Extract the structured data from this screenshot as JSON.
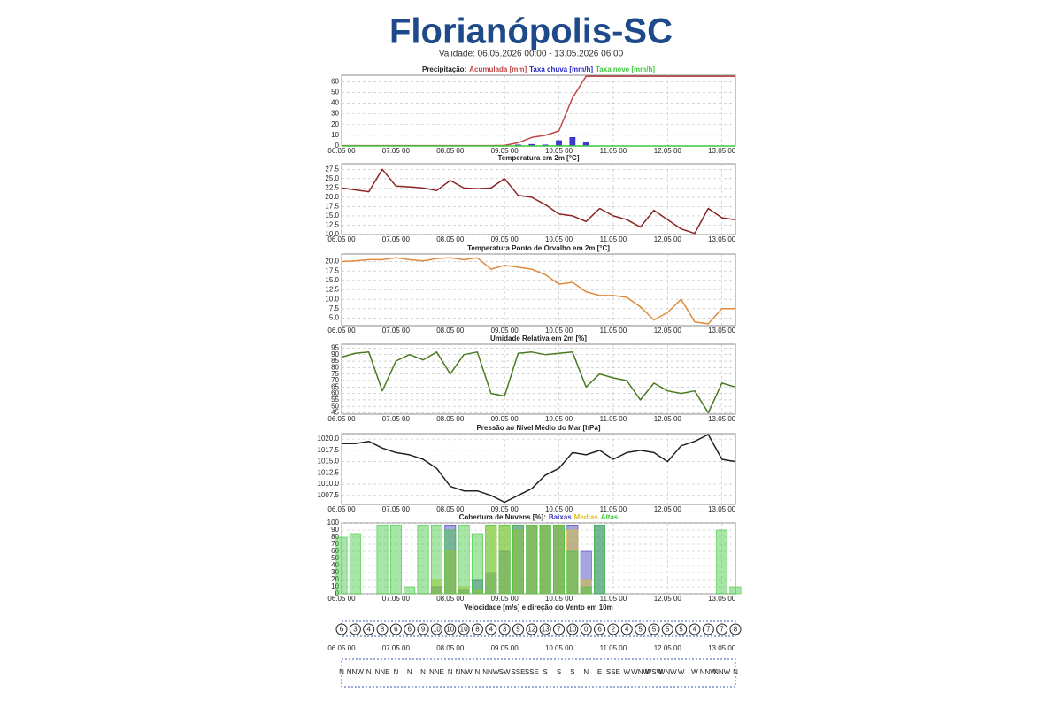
{
  "header": {
    "title": "Florianópolis-SC",
    "subtitle": "Validade: 06.05.2026 00:00 - 13.05.2026 06:00"
  },
  "chart_data": [
    {
      "type": "line",
      "title": "Precipitação:",
      "x": [
        "06.05 00",
        null,
        null,
        null,
        "07.05 00",
        null,
        null,
        null,
        "08.05 00",
        null,
        null,
        null,
        "09.05 00",
        null,
        null,
        null,
        "10.05 00",
        null,
        null,
        null,
        "11.05 00",
        null,
        null,
        null,
        "12.05 00",
        null,
        null,
        null,
        "13.05 00",
        null
      ],
      "ylim": [
        0,
        66
      ],
      "yticks": [
        0,
        10,
        20,
        30,
        40,
        50,
        60
      ],
      "grid": true,
      "series": [
        {
          "name": "Acumulada [mm]",
          "color": "#c04848",
          "values": [
            0.3,
            0.3,
            0.3,
            0.3,
            0.3,
            0.3,
            0.3,
            0.3,
            0.3,
            0.3,
            0.3,
            0.3,
            0.5,
            3,
            8,
            10,
            14,
            45,
            65,
            65,
            65,
            65,
            65,
            65,
            65,
            65,
            65,
            65,
            65,
            65
          ]
        },
        {
          "name": "Taxa chuva [mm/h]",
          "color": "#2828c8",
          "type": "bar",
          "values": [
            0,
            0,
            0,
            0,
            0,
            0,
            0,
            0,
            0,
            0,
            0,
            0,
            0,
            1,
            1.5,
            1,
            5,
            8,
            3,
            0,
            0,
            0,
            0,
            0,
            0,
            0,
            0,
            0,
            0,
            0
          ]
        },
        {
          "name": "Taxa neve [mm/h]",
          "color": "#3cc83c",
          "values": [
            0,
            0,
            0,
            0,
            0,
            0,
            0,
            0,
            0,
            0,
            0,
            0,
            0,
            0,
            0,
            0,
            0,
            0,
            0,
            0,
            0,
            0,
            0,
            0,
            0,
            0,
            0,
            0,
            0,
            0
          ]
        }
      ]
    },
    {
      "type": "line",
      "title": "Temperatura em 2m [°C]",
      "x": [
        "06.05 00",
        null,
        null,
        null,
        "07.05 00",
        null,
        null,
        null,
        "08.05 00",
        null,
        null,
        null,
        "09.05 00",
        null,
        null,
        null,
        "10.05 00",
        null,
        null,
        null,
        "11.05 00",
        null,
        null,
        null,
        "12.05 00",
        null,
        null,
        null,
        "13.05 00",
        null
      ],
      "ylim": [
        10,
        29
      ],
      "yticks": [
        {
          "value": 10,
          "label": "10.0"
        },
        12.5,
        {
          "value": 15,
          "label": "15.0"
        },
        17.5,
        {
          "value": 20,
          "label": "20.0"
        },
        22.5,
        {
          "value": 25,
          "label": "25.0"
        },
        27.5
      ],
      "grid": true,
      "series": [
        {
          "name": "Temperatura",
          "color": "#8b2323",
          "values": [
            22.5,
            22,
            21.5,
            27.5,
            23,
            22.8,
            22.5,
            21.8,
            24.5,
            22.5,
            22.3,
            22.5,
            25,
            20.5,
            20,
            18,
            15.5,
            15,
            13.5,
            17,
            15,
            14,
            12,
            16.5,
            14,
            11.5,
            10.3,
            17,
            14.5,
            14
          ]
        }
      ]
    },
    {
      "type": "line",
      "title": "Temperatura Ponto de Orvalho em 2m [°C]",
      "x": [
        "06.05 00",
        null,
        null,
        null,
        "07.05 00",
        null,
        null,
        null,
        "08.05 00",
        null,
        null,
        null,
        "09.05 00",
        null,
        null,
        null,
        "10.05 00",
        null,
        null,
        null,
        "11.05 00",
        null,
        null,
        null,
        "12.05 00",
        null,
        null,
        null,
        "13.05 00",
        null
      ],
      "ylim": [
        3,
        22
      ],
      "yticks": [
        {
          "value": 5,
          "label": "5.0"
        },
        7.5,
        {
          "value": 10,
          "label": "10.0"
        },
        12.5,
        {
          "value": 15,
          "label": "15.0"
        },
        17.5,
        {
          "value": 20,
          "label": "20.0"
        }
      ],
      "grid": true,
      "series": [
        {
          "name": "Ponto de Orvalho",
          "color": "#e08a3c",
          "values": [
            20,
            20.2,
            20.5,
            20.5,
            21,
            20.5,
            20.2,
            20.8,
            21,
            20.5,
            21,
            18,
            19,
            18.5,
            18,
            16.5,
            14,
            14.5,
            12,
            11,
            11,
            10.5,
            8,
            4.5,
            6.5,
            10,
            4,
            3.5,
            7.5,
            7.5
          ]
        }
      ]
    },
    {
      "type": "line",
      "title": "Umidade Relativa em 2m [%]",
      "x": [
        "06.05 00",
        null,
        null,
        null,
        "07.05 00",
        null,
        null,
        null,
        "08.05 00",
        null,
        null,
        null,
        "09.05 00",
        null,
        null,
        null,
        "10.05 00",
        null,
        null,
        null,
        "11.05 00",
        null,
        null,
        null,
        "12.05 00",
        null,
        null,
        null,
        "13.05 00",
        null
      ],
      "ylim": [
        44,
        98
      ],
      "yticks": [
        45,
        50,
        55,
        60,
        65,
        70,
        75,
        80,
        85,
        90,
        95
      ],
      "grid": true,
      "series": [
        {
          "name": "Umidade",
          "color": "#4a7a20",
          "values": [
            88,
            91,
            92,
            62,
            85,
            90,
            86,
            92,
            75,
            90,
            92,
            60,
            58,
            91,
            92,
            90,
            91,
            92,
            65,
            75,
            72,
            70,
            55,
            68,
            62,
            60,
            62,
            45,
            68,
            65
          ]
        }
      ]
    },
    {
      "type": "line",
      "title": "Pressão ao Nível Médio do Mar [hPa]",
      "x": [
        "06.05 00",
        null,
        null,
        null,
        "07.05 00",
        null,
        null,
        null,
        "08.05 00",
        null,
        null,
        null,
        "09.05 00",
        null,
        null,
        null,
        "10.05 00",
        null,
        null,
        null,
        "11.05 00",
        null,
        null,
        null,
        "12.05 00",
        null,
        null,
        null,
        "13.05 00",
        null
      ],
      "ylim": [
        1005.5,
        1021.2
      ],
      "yticks": [
        1007.5,
        {
          "value": 1010,
          "label": "1010.0"
        },
        1012.5,
        {
          "value": 1015,
          "label": "1015.0"
        },
        1017.5,
        {
          "value": 1020,
          "label": "1020.0"
        }
      ],
      "grid": true,
      "series": [
        {
          "name": "Pressão",
          "color": "#222222",
          "values": [
            1019,
            1019,
            1019.5,
            1018,
            1017,
            1016.5,
            1015.5,
            1013.5,
            1009.5,
            1008.5,
            1008.5,
            1007.5,
            1006,
            1007.5,
            1009,
            1012,
            1013.5,
            1017,
            1016.5,
            1017.5,
            1015.5,
            1017,
            1017.5,
            1017,
            1015,
            1018.5,
            1019.5,
            1021,
            1015.5,
            1015
          ]
        }
      ]
    },
    {
      "type": "bar",
      "title": "Cobertura de Nuvens [%]:",
      "x": [
        "06.05 00",
        null,
        null,
        null,
        "07.05 00",
        null,
        null,
        null,
        "08.05 00",
        null,
        null,
        null,
        "09.05 00",
        null,
        null,
        null,
        "10.05 00",
        null,
        null,
        null,
        "11.05 00",
        null,
        null,
        null,
        "12.05 00",
        null,
        null,
        null,
        "13.05 00",
        null
      ],
      "ylim": [
        0,
        100
      ],
      "yticks": [
        0,
        10,
        20,
        30,
        40,
        50,
        60,
        70,
        80,
        90,
        100
      ],
      "grid": true,
      "series": [
        {
          "name": "Baixas",
          "color": "#3a3ab8",
          "values": [
            0,
            0,
            0,
            0,
            0,
            0,
            0,
            10,
            97,
            5,
            20,
            30,
            60,
            97,
            97,
            97,
            97,
            97,
            60,
            97,
            0,
            0,
            0,
            0,
            0,
            0,
            0,
            0,
            0,
            0
          ]
        },
        {
          "name": "Medias",
          "color": "#e0c020",
          "values": [
            0,
            0,
            0,
            0,
            0,
            0,
            0,
            20,
            60,
            10,
            5,
            97,
            97,
            90,
            97,
            97,
            97,
            90,
            20,
            0,
            0,
            0,
            0,
            0,
            0,
            0,
            0,
            0,
            0,
            0
          ]
        },
        {
          "name": "Altas",
          "color": "#3cc83c",
          "values": [
            80,
            85,
            0,
            97,
            97,
            10,
            97,
            97,
            90,
            97,
            85,
            97,
            97,
            97,
            97,
            97,
            97,
            60,
            10,
            97,
            0,
            0,
            0,
            0,
            0,
            0,
            0,
            0,
            90,
            10
          ]
        }
      ]
    },
    {
      "type": "wind",
      "title": "Velocidade [m/s] e direção do Vento em 10m",
      "x": [
        "06.05 00",
        null,
        null,
        null,
        "07.05 00",
        null,
        null,
        null,
        "08.05 00",
        null,
        null,
        null,
        "09.05 00",
        null,
        null,
        null,
        "10.05 00",
        null,
        null,
        null,
        "11.05 00",
        null,
        null,
        null,
        "12.05 00",
        null,
        null,
        null,
        "13.05 00",
        null
      ],
      "values": [
        6,
        3,
        4,
        8,
        6,
        6,
        9,
        10,
        10,
        10,
        8,
        4,
        3,
        5,
        12,
        13,
        7,
        10,
        0,
        6,
        2,
        4,
        5,
        5,
        5,
        5,
        4,
        7,
        7,
        8
      ],
      "directions": [
        "N",
        "NNW",
        "N",
        "NNE",
        "N",
        "N",
        "N",
        "NNE",
        "N",
        "NNW",
        "N",
        "NNW",
        "SW",
        "SSE",
        "SSE",
        "S",
        "S",
        "S",
        "N",
        "E",
        "SSE",
        "W",
        "WNW",
        "WSW",
        "WNW",
        "W",
        "W",
        "NNW",
        "NNW",
        "N"
      ]
    }
  ]
}
